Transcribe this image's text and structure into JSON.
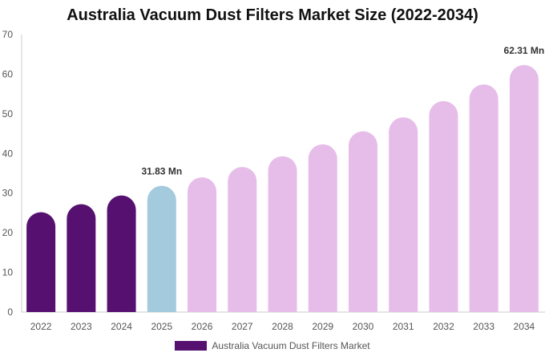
{
  "chart_data": {
    "type": "bar",
    "title": "Australia Vacuum Dust Filters Market Size (2022-2034)",
    "categories": [
      "2022",
      "2023",
      "2024",
      "2025",
      "2026",
      "2027",
      "2028",
      "2029",
      "2030",
      "2031",
      "2032",
      "2033",
      "2034"
    ],
    "series": [
      {
        "name": "Australia Vacuum Dust Filters Market",
        "values": [
          25.2,
          27.2,
          29.4,
          31.83,
          34.0,
          36.6,
          39.3,
          42.3,
          45.6,
          49.1,
          53.2,
          57.4,
          62.31
        ]
      }
    ],
    "data_labels": [
      {
        "category": "2025",
        "text": "31.83 Mn"
      },
      {
        "category": "2034",
        "text": "62.31 Mn"
      }
    ],
    "y_ticks": [
      0,
      10,
      20,
      30,
      40,
      50,
      60,
      70
    ],
    "ylim": [
      0,
      70
    ],
    "xlabel": "",
    "ylabel": "",
    "legend_position": "bottom",
    "colors": {
      "historical": "#561170",
      "current": "#a4cade",
      "forecast": "#e6bde9",
      "axis": "#cccccc"
    },
    "period_of": [
      "historical",
      "historical",
      "historical",
      "current",
      "forecast",
      "forecast",
      "forecast",
      "forecast",
      "forecast",
      "forecast",
      "forecast",
      "forecast",
      "forecast"
    ]
  }
}
